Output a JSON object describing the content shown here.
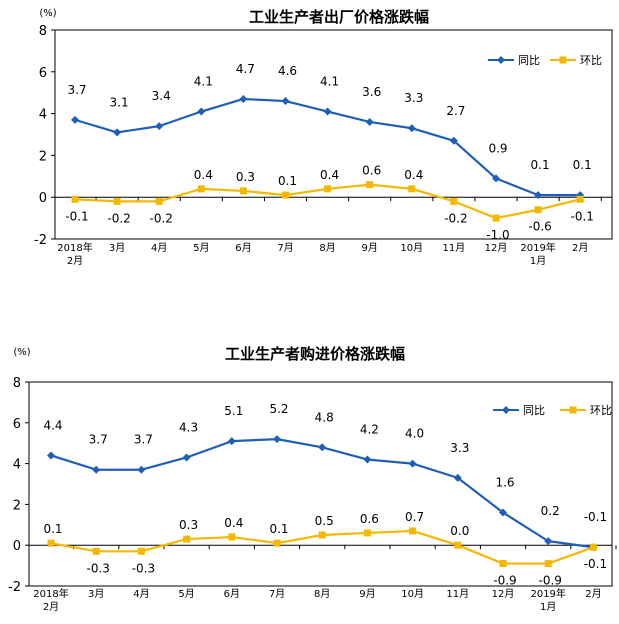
{
  "chart_data": [
    {
      "type": "line",
      "title": "工业生产者出厂价格涨跌幅",
      "unit_label": "(%)",
      "ylim": [
        -2,
        8
      ],
      "yticks": [
        -2,
        0,
        2,
        4,
        6,
        8
      ],
      "grid": false,
      "legend_position": "top-right",
      "categories": [
        [
          "2018年",
          "2月"
        ],
        [
          "3月"
        ],
        [
          "4月"
        ],
        [
          "5月"
        ],
        [
          "6月"
        ],
        [
          "7月"
        ],
        [
          "8月"
        ],
        [
          "9月"
        ],
        [
          "10月"
        ],
        [
          "11月"
        ],
        [
          "12月"
        ],
        [
          "2019年",
          "1月"
        ],
        [
          "2月"
        ]
      ],
      "series": [
        {
          "name": "同比",
          "color": "#1F5FB5",
          "marker": "diamond",
          "values": [
            3.7,
            3.1,
            3.4,
            4.1,
            4.7,
            4.6,
            4.1,
            3.6,
            3.3,
            2.7,
            0.9,
            0.1,
            0.1
          ],
          "labels": [
            "3.7",
            "3.1",
            "3.4",
            "4.1",
            "4.7",
            "4.6",
            "4.1",
            "3.6",
            "3.3",
            "2.7",
            "0.9",
            "0.1",
            "0.1"
          ]
        },
        {
          "name": "环比",
          "color": "#F5B800",
          "marker": "square",
          "values": [
            -0.1,
            -0.2,
            -0.2,
            0.4,
            0.3,
            0.1,
            0.4,
            0.6,
            0.4,
            -0.2,
            -1.0,
            -0.6,
            -0.1
          ],
          "labels": [
            "-0.1",
            "-0.2",
            "-0.2",
            "0.4",
            "0.3",
            "0.1",
            "0.4",
            "0.6",
            "0.4",
            "-0.2",
            "-1.0",
            "-0.6",
            "-0.1"
          ]
        }
      ]
    },
    {
      "type": "line",
      "title": "工业生产者购进价格涨跌幅",
      "unit_label": "(%)",
      "ylim": [
        -2,
        8
      ],
      "yticks": [
        -2,
        0,
        2,
        4,
        6,
        8
      ],
      "grid": false,
      "legend_position": "top-right",
      "categories": [
        [
          "2018年",
          "2月"
        ],
        [
          "3月"
        ],
        [
          "4月"
        ],
        [
          "5月"
        ],
        [
          "6月"
        ],
        [
          "7月"
        ],
        [
          "8月"
        ],
        [
          "9月"
        ],
        [
          "10月"
        ],
        [
          "11月"
        ],
        [
          "12月"
        ],
        [
          "2019年",
          "1月"
        ],
        [
          "2月"
        ]
      ],
      "series": [
        {
          "name": "同比",
          "color": "#1F5FB5",
          "marker": "diamond",
          "values": [
            4.4,
            3.7,
            3.7,
            4.3,
            5.1,
            5.2,
            4.8,
            4.2,
            4.0,
            3.3,
            1.6,
            0.2,
            -0.1
          ],
          "labels": [
            "4.4",
            "3.7",
            "3.7",
            "4.3",
            "5.1",
            "5.2",
            "4.8",
            "4.2",
            "4.0",
            "3.3",
            "1.6",
            "0.2",
            "-0.1"
          ]
        },
        {
          "name": "环比",
          "color": "#F5B800",
          "marker": "square",
          "values": [
            0.1,
            -0.3,
            -0.3,
            0.3,
            0.4,
            0.1,
            0.5,
            0.6,
            0.7,
            0.0,
            -0.9,
            -0.9,
            -0.1
          ],
          "labels": [
            "0.1",
            "-0.3",
            "-0.3",
            "0.3",
            "0.4",
            "0.1",
            "0.5",
            "0.6",
            "0.7",
            "0.0",
            "-0.9",
            "-0.9",
            "-0.1"
          ]
        }
      ]
    }
  ]
}
